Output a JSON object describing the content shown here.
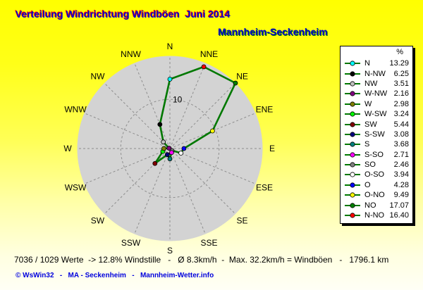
{
  "header": {
    "title": "Verteilung Windrichtung Windböen  Juni 2014",
    "station": "Mannheim-Seckenheim",
    "title_color": "#0000CC",
    "title_shadow_color": "#FF0000",
    "station_shadow_color": "#007800"
  },
  "chart_data": {
    "type": "windrose-line",
    "title": "Verteilung Windrichtung Windböen Juni 2014",
    "subtitle": "Mannheim-Seckenheim",
    "units": "%",
    "legend_position": "right",
    "axis": {
      "ring_label": "10",
      "ring_value": 10,
      "center_value": 2,
      "rim_value": 17.07
    },
    "compass_labels": [
      "N",
      "NNE",
      "NE",
      "ENE",
      "E",
      "ESE",
      "SE",
      "SSE",
      "S",
      "SSW",
      "SW",
      "WSW",
      "W",
      "WNW",
      "NW",
      "NNW"
    ],
    "directions": [
      {
        "compass": "N",
        "name": "N",
        "value": 13.29,
        "color": "#00FFFF",
        "legend_order": 0
      },
      {
        "compass": "NNE",
        "name": "N-NO",
        "value": 16.4,
        "color": "#FF0000",
        "legend_order": 15
      },
      {
        "compass": "NE",
        "name": "NO",
        "value": 17.07,
        "color": "#008000",
        "legend_order": 14
      },
      {
        "compass": "ENE",
        "name": "O-NO",
        "value": 9.49,
        "color": "#FFFF00",
        "legend_order": 13
      },
      {
        "compass": "E",
        "name": "O",
        "value": 4.28,
        "color": "#0000FF",
        "legend_order": 12
      },
      {
        "compass": "ESE",
        "name": "O-SO",
        "value": 3.94,
        "color": "#FFFFFF",
        "legend_order": 11
      },
      {
        "compass": "SE",
        "name": "SO",
        "value": 2.46,
        "color": "#808080",
        "legend_order": 10
      },
      {
        "compass": "SSE",
        "name": "S-SO",
        "value": 2.71,
        "color": "#FF00FF",
        "legend_order": 9
      },
      {
        "compass": "S",
        "name": "S",
        "value": 3.68,
        "color": "#008080",
        "legend_order": 8
      },
      {
        "compass": "SSW",
        "name": "S-SW",
        "value": 3.08,
        "color": "#000080",
        "legend_order": 7
      },
      {
        "compass": "SW",
        "name": "SW",
        "value": 5.44,
        "color": "#800000",
        "legend_order": 6
      },
      {
        "compass": "WSW",
        "name": "W-SW",
        "value": 3.24,
        "color": "#00FF00",
        "legend_order": 5
      },
      {
        "compass": "W",
        "name": "W",
        "value": 2.98,
        "color": "#808000",
        "legend_order": 4
      },
      {
        "compass": "WNW",
        "name": "W-NW",
        "value": 2.16,
        "color": "#800080",
        "legend_order": 3
      },
      {
        "compass": "NW",
        "name": "NW",
        "value": 3.51,
        "color": "#C0C0C0",
        "legend_order": 2
      },
      {
        "compass": "NNW",
        "name": "N-NW",
        "value": 6.25,
        "color": "#000000",
        "legend_order": 1
      }
    ],
    "colors": {
      "line": "#007800",
      "disc": "#D3D3D3",
      "grid": "#8E8E8E",
      "text": "#000000"
    }
  },
  "legend": {
    "header": "%"
  },
  "footer": {
    "stats": "7036 / 1029 Werte  -> 12.8% Windstille   -   Ø 8.3km/h  -  Max. 32.2km/h = Windböen   -   1796.1 km",
    "credit": "© WsWin32   -   MA - Seckenheim   -   Mannheim-Wetter.info"
  }
}
